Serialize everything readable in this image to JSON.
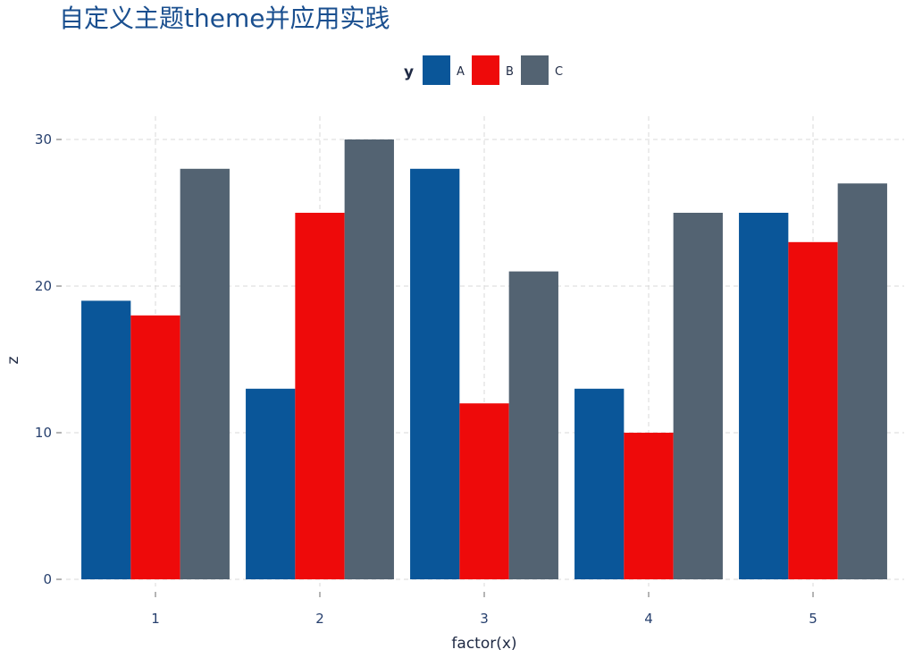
{
  "chart_data": {
    "type": "bar",
    "title": "自定义主题theme并应用实践",
    "xlabel": "factor(x)",
    "ylabel": "z",
    "categories": [
      "1",
      "2",
      "3",
      "4",
      "5"
    ],
    "series": [
      {
        "name": "A",
        "values": [
          19,
          13,
          28,
          13,
          25
        ],
        "color": "#0a5699"
      },
      {
        "name": "B",
        "values": [
          18,
          25,
          12,
          10,
          23
        ],
        "color": "#ee0a0a"
      },
      {
        "name": "C",
        "values": [
          28,
          30,
          21,
          25,
          27
        ],
        "color": "#536372"
      }
    ],
    "ylim": [
      0,
      30
    ],
    "yticks": [
      0,
      10,
      20,
      30
    ],
    "legend": {
      "title": "y",
      "position": "top"
    },
    "grid": true
  }
}
